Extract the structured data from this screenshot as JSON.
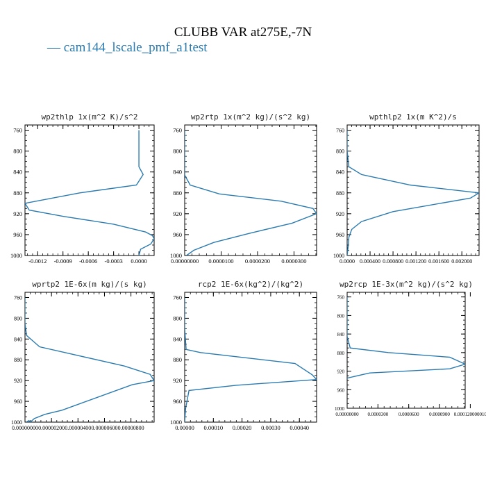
{
  "title": "CLUBB VAR at275E,-7N",
  "legend": {
    "label": "cam144_lscale_pmf_a1test",
    "color": "#2b7bb0"
  },
  "chart_data": [
    {
      "type": "line",
      "title": "wp2thlp  1x(m^2 K)/s^2",
      "xlim": [
        -0.00135,
        0.00018
      ],
      "ylim": [
        1000,
        750
      ],
      "xticks": [
        -0.0012,
        -0.0009,
        -0.0006,
        -0.0003,
        0.0
      ],
      "xtick_labels": [
        "-0.0012",
        "-0.0009",
        "-0.0006",
        "-0.0003",
        "0.0000"
      ],
      "yticks": [
        760,
        800,
        840,
        880,
        920,
        960,
        1000
      ],
      "series": [
        {
          "x": [
            0.0,
            0.0,
            0.0,
            5e-05,
            -3e-05,
            -0.0007,
            -0.00135,
            -0.0013,
            -0.0009,
            -0.0003,
            8e-05,
            0.00016,
            0.00018,
            0.00014,
            2e-05,
            0.0
          ],
          "y": [
            760,
            800,
            830,
            845,
            865,
            880,
            900,
            913,
            925,
            940,
            955,
            962,
            968,
            978,
            988,
            1000
          ]
        }
      ]
    },
    {
      "type": "line",
      "title": "wp2rtp  1x(m^2 kg)/(s^2 kg)",
      "xlim": [
        0.0,
        3.62e-05
      ],
      "ylim": [
        1000,
        750
      ],
      "xticks": [
        0.0,
        1e-05,
        2e-05,
        3e-05
      ],
      "xtick_labels": [
        "0.00000000",
        "0.0000100",
        "0.0000200",
        "0.0000300"
      ],
      "yticks": [
        760,
        800,
        840,
        880,
        920,
        960,
        1000
      ],
      "series": [
        {
          "x": [
            0.0,
            0.0,
            0.0,
            1.5e-06,
            9.5e-06,
            2.65e-05,
            3.52e-05,
            3.62e-05,
            2.95e-05,
            1.75e-05,
            8e-06,
            2.5e-06,
            5e-07
          ],
          "y": [
            760,
            800,
            846,
            865,
            882,
            896,
            910,
            920,
            938,
            958,
            975,
            990,
            1000
          ]
        }
      ]
    },
    {
      "type": "line",
      "title": "wpthlp2  1x(m K^2)/s",
      "xlim": [
        0.0,
        0.0023
      ],
      "ylim": [
        1000,
        750
      ],
      "xticks": [
        0.0,
        0.0004,
        0.0008,
        0.0012,
        0.0016,
        0.002
      ],
      "xtick_labels": [
        "0.0000",
        "0.000400",
        "0.000800",
        "0.001200",
        "0.001600",
        "0.002000"
      ],
      "yticks": [
        760,
        800,
        840,
        880,
        920,
        960,
        1000
      ],
      "series": [
        {
          "x": [
            0.0,
            0.0,
            3e-05,
            0.00025,
            0.0011,
            0.0023,
            0.00215,
            0.0008,
            0.00025,
            8e-05,
            3e-05,
            2e-05,
            0.0
          ],
          "y": [
            760,
            800,
            830,
            845,
            865,
            880,
            890,
            916,
            935,
            950,
            965,
            980,
            1000
          ]
        }
      ]
    },
    {
      "type": "line",
      "title": "wprtp2  1E-6x(m kg)/(s kg)",
      "xlim": [
        0.0,
        9.75e-06
      ],
      "ylim": [
        1000,
        750
      ],
      "xticks": [
        0.0,
        2e-06,
        4e-06,
        6e-06,
        8e-06
      ],
      "xtick_labels": [
        "0.00000000",
        "0.00000200",
        "0.00000400",
        "0.00000600",
        "0.00000800"
      ],
      "yticks": [
        760,
        800,
        840,
        880,
        920,
        960,
        1000
      ],
      "series": [
        {
          "x": [
            0.0,
            0.0,
            1.2e-07,
            1.1e-06,
            7.5e-06,
            9.45e-06,
            9.75e-06,
            8.1e-06,
            2.8e-06,
            1.5e-06,
            7e-07,
            4e-07,
            3e-07,
            1e-07
          ],
          "y": [
            760,
            810,
            833,
            855,
            892,
            908,
            920,
            928,
            977,
            985,
            993,
            1000,
            997,
            1000
          ]
        }
      ]
    },
    {
      "type": "line",
      "title": "rcp2  1E-6x(kg^2)/(kg^2)",
      "xlim": [
        0.0,
        0.00046
      ],
      "ylim": [
        1000,
        750
      ],
      "xticks": [
        0.0,
        0.0001,
        0.0002,
        0.0003,
        0.0004
      ],
      "xtick_labels": [
        "0.00000",
        "0.00010",
        "0.00020",
        "0.00030",
        "0.00040"
      ],
      "yticks": [
        760,
        800,
        840,
        880,
        920,
        960,
        1000
      ],
      "series": [
        {
          "x": [
            0.0,
            0.0,
            5e-06,
            5.5e-05,
            0.000385,
            0.000445,
            0.00046,
            0.00018,
            1.5e-05,
            3e-06,
            0.0
          ],
          "y": [
            760,
            820,
            860,
            866,
            887,
            909,
            918,
            929,
            939,
            975,
            1000
          ]
        }
      ]
    },
    {
      "type": "line",
      "title": "wp2rcp  1E-3x(m^2 kg)/(s^2 kg)",
      "xlim": [
        0.0,
        0.000115
      ],
      "ylim": [
        1000,
        750
      ],
      "xticks": [
        0.0,
        3e-05,
        6e-05,
        9e-05,
        0.00012
      ],
      "xtick_labels": [
        "0.00000000",
        "0.0000300",
        "0.0000600",
        "0.0000900",
        "0.000120000010"
      ],
      "yticks": [
        760,
        800,
        840,
        880,
        920,
        960,
        1000
      ],
      "series": [
        {
          "x": [
            0.0,
            0.0,
            3e-06,
            4e-05,
            0.0001,
            0.000115,
            0.0001,
            2.2e-05,
            0.0
          ],
          "y": [
            760,
            845,
            870,
            880,
            890,
            905,
            915,
            924,
            935
          ]
        }
      ]
    }
  ]
}
